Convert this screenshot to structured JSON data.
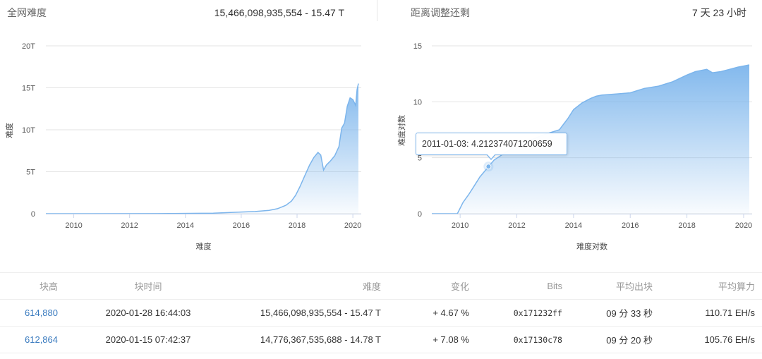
{
  "header_left": {
    "label": "全网难度",
    "value": "15,466,098,935,554 - 15.47 T"
  },
  "header_right": {
    "label": "距离调整还剩",
    "value": "7 天 23 小时"
  },
  "chart_data": [
    {
      "type": "area",
      "title": "",
      "xlabel": "难度",
      "ylabel": "难度",
      "xlim": [
        2009.0,
        2020.3
      ],
      "ylim": [
        0,
        20
      ],
      "y_unit": "T",
      "xticks": [
        2010,
        2012,
        2014,
        2016,
        2018,
        2020
      ],
      "xtick_labels": [
        "2010",
        "2012",
        "2014",
        "2016",
        "2018",
        "2020"
      ],
      "yticks": [
        0,
        5,
        10,
        15,
        20
      ],
      "ytick_labels": [
        "0",
        "5T",
        "10T",
        "15T",
        "20T"
      ],
      "grid": true,
      "series": [
        {
          "x": [
            2009.0,
            2013.0,
            2015.0,
            2016.0,
            2016.5,
            2017.0,
            2017.3,
            2017.6,
            2017.8,
            2017.95,
            2018.1,
            2018.3,
            2018.45,
            2018.6,
            2018.75,
            2018.85,
            2018.95,
            2019.05,
            2019.2,
            2019.35,
            2019.5,
            2019.6,
            2019.7,
            2019.8,
            2019.9,
            2020.0,
            2020.1,
            2020.15,
            2020.2
          ],
          "values": [
            0,
            0.01,
            0.06,
            0.2,
            0.26,
            0.4,
            0.6,
            1.0,
            1.5,
            2.2,
            3.2,
            4.7,
            5.8,
            6.7,
            7.3,
            7.0,
            5.2,
            5.8,
            6.3,
            6.9,
            8.0,
            10.2,
            10.8,
            12.8,
            13.8,
            13.6,
            12.9,
            14.8,
            15.5
          ]
        }
      ]
    },
    {
      "type": "area",
      "title": "",
      "xlabel": "难度对数",
      "ylabel": "难度对数",
      "xlim": [
        2009.0,
        2020.3
      ],
      "ylim": [
        0,
        15
      ],
      "xticks": [
        2010,
        2012,
        2014,
        2016,
        2018,
        2020
      ],
      "xtick_labels": [
        "2010",
        "2012",
        "2014",
        "2016",
        "2018",
        "2020"
      ],
      "yticks": [
        0,
        5,
        10,
        15
      ],
      "ytick_labels": [
        "0",
        "5",
        "10",
        "15"
      ],
      "grid": true,
      "series": [
        {
          "x": [
            2009.0,
            2009.9,
            2010.0,
            2010.1,
            2010.3,
            2010.5,
            2010.7,
            2010.9,
            2011.0,
            2011.2,
            2011.5,
            2011.8,
            2012.0,
            2012.5,
            2013.0,
            2013.5,
            2013.8,
            2014.0,
            2014.3,
            2014.6,
            2014.8,
            2015.0,
            2015.5,
            2016.0,
            2016.5,
            2017.0,
            2017.5,
            2018.0,
            2018.3,
            2018.7,
            2018.9,
            2019.2,
            2019.5,
            2019.8,
            2020.0,
            2020.2
          ],
          "values": [
            0,
            0,
            0.5,
            1.0,
            1.7,
            2.5,
            3.3,
            3.9,
            4.21,
            4.8,
            5.3,
            5.8,
            6.2,
            6.6,
            7.1,
            7.5,
            8.5,
            9.3,
            9.9,
            10.3,
            10.5,
            10.6,
            10.7,
            10.8,
            11.2,
            11.4,
            11.8,
            12.4,
            12.7,
            12.9,
            12.6,
            12.7,
            12.9,
            13.1,
            13.2,
            13.3
          ]
        }
      ],
      "tooltip": {
        "text": "2011-01-03: 4.212374071200659",
        "x": 2011.0,
        "y": 4.212374071200659
      }
    }
  ],
  "table": {
    "columns": [
      "块高",
      "块时间",
      "难度",
      "变化",
      "Bits",
      "平均出块",
      "平均算力"
    ],
    "rows": [
      {
        "height": "614,880",
        "time": "2020-01-28 16:44:03",
        "difficulty": "15,466,098,935,554 - 15.47 T",
        "change": "+ 4.67 %",
        "bits": "0x171232ff",
        "avg_block": "09 分 33 秒",
        "hashrate": "110.71 EH/s"
      },
      {
        "height": "612,864",
        "time": "2020-01-15 07:42:37",
        "difficulty": "14,776,367,535,688 - 14.78 T",
        "change": "+ 7.08 %",
        "bits": "0x17130c78",
        "avg_block": "09 分 20 秒",
        "hashrate": "105.76 EH/s"
      }
    ]
  },
  "colors": {
    "area_fill_top": "#7cb5ec",
    "line": "#7cb5ec",
    "link": "#3a7bbf",
    "positive": "#3d9a3d"
  }
}
